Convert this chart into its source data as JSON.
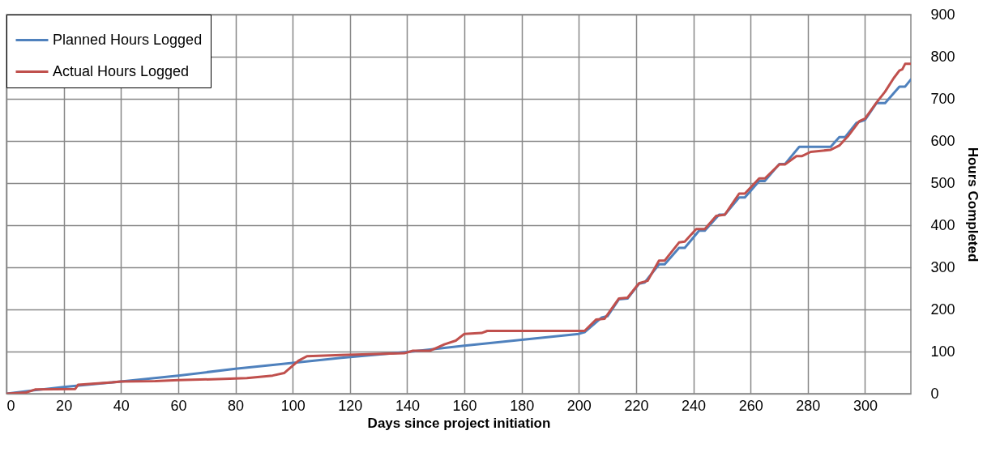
{
  "chart_data": {
    "type": "line",
    "xlabel": "Days since project initiation",
    "ylabel": "Hours Completed",
    "xlim": [
      0,
      316
    ],
    "xticks": [
      0,
      20,
      40,
      60,
      80,
      100,
      120,
      140,
      160,
      180,
      200,
      220,
      240,
      260,
      280,
      300
    ],
    "ylim": [
      0,
      900
    ],
    "yticks": [
      0,
      100,
      200,
      300,
      400,
      500,
      600,
      700,
      800,
      900
    ],
    "grid": true,
    "legend": "top left",
    "line_style": "solid",
    "series": [
      {
        "name": "Planned Hours Logged",
        "color": "#4f81bd",
        "x": [
          0,
          7,
          20,
          40,
          60,
          80,
          100,
          117,
          140,
          160,
          180,
          200,
          202,
          208,
          210,
          214,
          217,
          221,
          223,
          228,
          230,
          235,
          237,
          242,
          244,
          249,
          251,
          256,
          258,
          263,
          265,
          270,
          272,
          277,
          288,
          291,
          293,
          297,
          300,
          304,
          307,
          312,
          314,
          316
        ],
        "values": [
          0,
          6,
          16,
          29,
          43,
          59,
          73,
          85,
          99,
          114,
          128,
          142,
          146,
          181,
          184,
          224,
          226,
          261,
          264,
          307,
          307,
          346,
          346,
          387,
          387,
          425,
          425,
          466,
          466,
          505,
          505,
          545,
          545,
          586,
          586,
          609,
          609,
          643,
          650,
          690,
          690,
          729,
          729,
          746
        ]
      },
      {
        "name": "Actual Hours Logged",
        "color": "#c0504d",
        "x": [
          0,
          7,
          10,
          24,
          25,
          37,
          40,
          52,
          60,
          76,
          84,
          93,
          97,
          102,
          105,
          117,
          139,
          142,
          148,
          150,
          153,
          157,
          160,
          166,
          168,
          202,
          206,
          209,
          214,
          217,
          221,
          224,
          228,
          230,
          235,
          237,
          241,
          244,
          248,
          251,
          256,
          258,
          263,
          265,
          270,
          272,
          276,
          278,
          281,
          288,
          291,
          294,
          298,
          300,
          304,
          307,
          310,
          312,
          313,
          314,
          316
        ],
        "values": [
          0,
          3,
          10,
          11,
          21,
          27,
          29,
          30,
          32,
          35,
          37,
          43,
          49,
          78,
          89,
          92,
          96,
          102,
          102,
          108,
          117,
          126,
          142,
          144,
          149,
          149,
          176,
          178,
          226,
          228,
          262,
          268,
          316,
          316,
          359,
          361,
          391,
          391,
          422,
          425,
          475,
          475,
          511,
          511,
          544,
          544,
          564,
          564,
          574,
          579,
          589,
          611,
          647,
          653,
          691,
          717,
          749,
          767,
          770,
          783,
          783
        ]
      }
    ]
  }
}
